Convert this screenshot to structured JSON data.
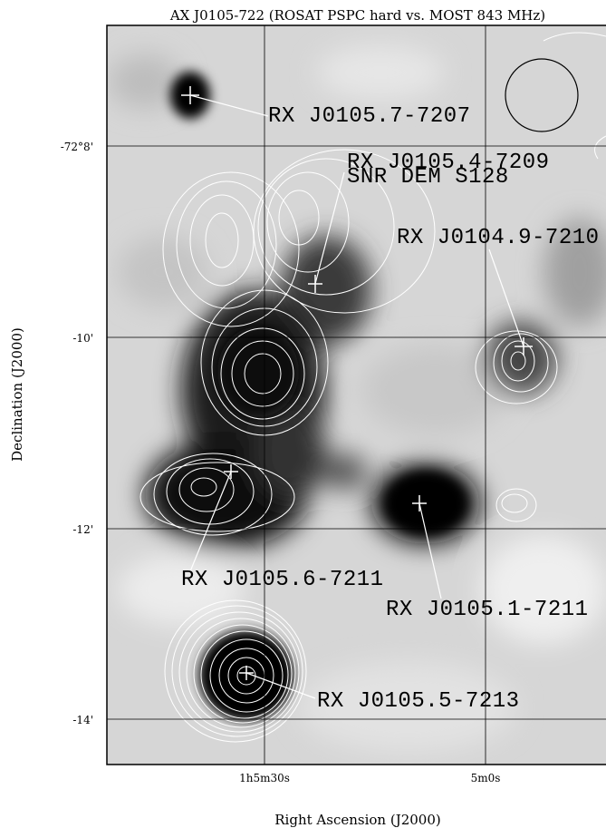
{
  "title": "AX J0105-722 (ROSAT PSPC hard vs. MOST 843 MHz)",
  "x_axis": {
    "label": "Right Ascension (J2000)",
    "ticks": [
      "1h5m30s",
      "5m0s"
    ]
  },
  "y_axis": {
    "label": "Declination (J2000)",
    "ticks": [
      "-72°8'",
      "-10'",
      "-12'",
      "-14'"
    ]
  },
  "sources": [
    {
      "label": "RX J0105.7-7207"
    },
    {
      "label": "RX J0105.4-7209",
      "note": "SNR DEM S128"
    },
    {
      "label": "RX J0104.9-7210"
    },
    {
      "label": "RX J0105.6-7211"
    },
    {
      "label": "RX J0105.1-7211"
    },
    {
      "label": "RX J0105.5-7213"
    }
  ]
}
